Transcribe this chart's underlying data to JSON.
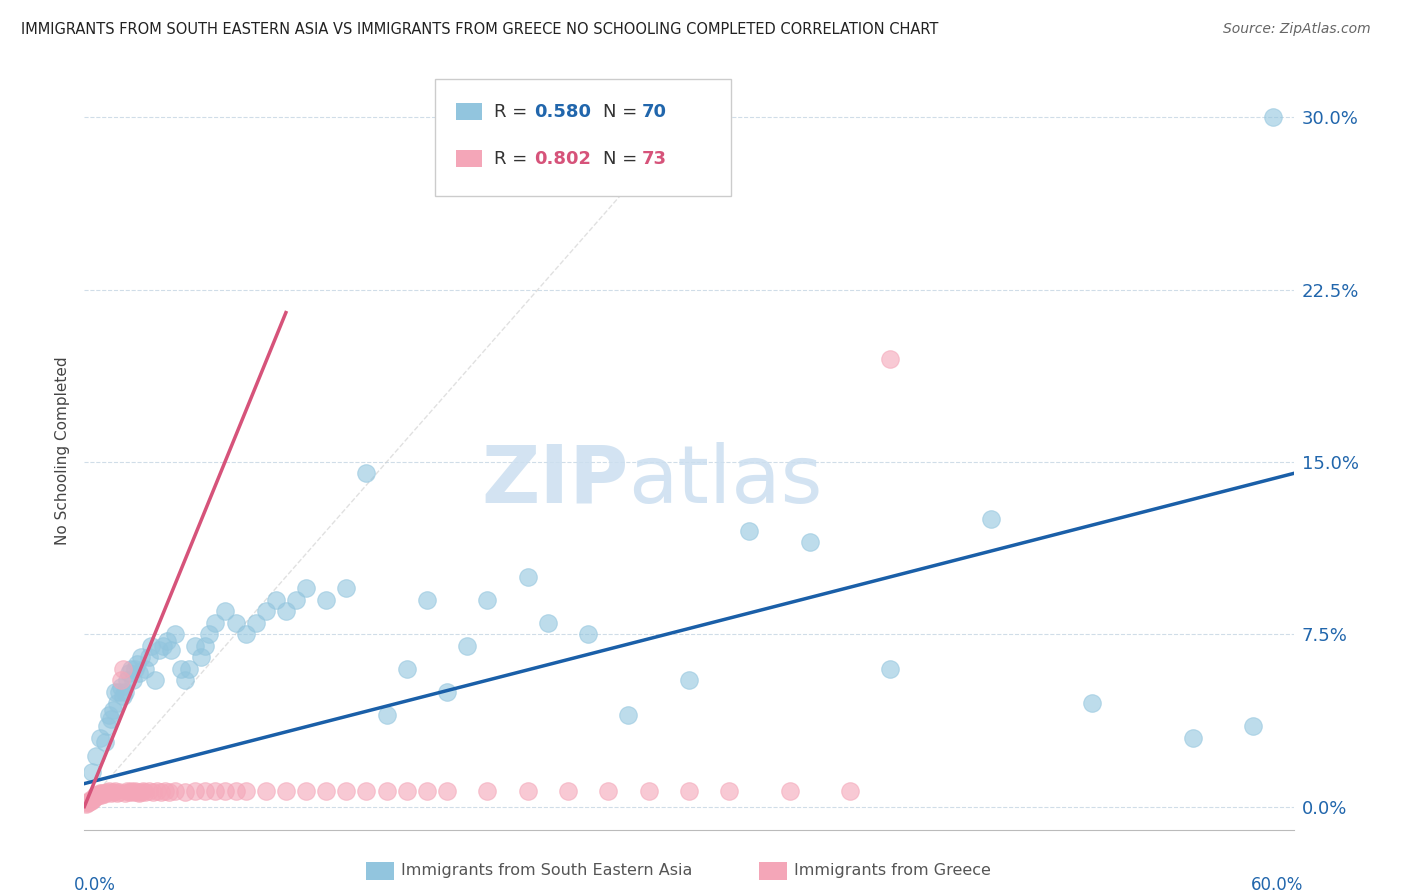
{
  "title": "IMMIGRANTS FROM SOUTH EASTERN ASIA VS IMMIGRANTS FROM GREECE NO SCHOOLING COMPLETED CORRELATION CHART",
  "source": "Source: ZipAtlas.com",
  "ylabel": "No Schooling Completed",
  "ytick_values": [
    0.0,
    7.5,
    15.0,
    22.5,
    30.0
  ],
  "xlim": [
    0.0,
    60.0
  ],
  "ylim": [
    -1.0,
    32.0
  ],
  "legend_r1": "0.580",
  "legend_n1": "70",
  "legend_r2": "0.802",
  "legend_n2": "73",
  "color_blue": "#92c5de",
  "color_pink": "#f4a6b8",
  "color_blue_dark": "#2166ac",
  "color_pink_dark": "#d6537a",
  "color_blue_line": "#1a5fa8",
  "color_pink_line": "#d6537a",
  "color_diag": "#cccccc",
  "blue_scatter_x": [
    0.4,
    0.6,
    0.8,
    1.0,
    1.1,
    1.2,
    1.3,
    1.4,
    1.5,
    1.6,
    1.7,
    1.8,
    1.9,
    2.0,
    2.1,
    2.2,
    2.3,
    2.4,
    2.5,
    2.6,
    2.7,
    2.8,
    3.0,
    3.2,
    3.3,
    3.5,
    3.7,
    3.9,
    4.1,
    4.3,
    4.5,
    4.8,
    5.0,
    5.2,
    5.5,
    5.8,
    6.0,
    6.2,
    6.5,
    7.0,
    7.5,
    8.0,
    8.5,
    9.0,
    9.5,
    10.0,
    10.5,
    11.0,
    12.0,
    13.0,
    14.0,
    15.0,
    16.0,
    17.0,
    18.0,
    19.0,
    20.0,
    22.0,
    23.0,
    25.0,
    27.0,
    30.0,
    33.0,
    36.0,
    40.0,
    45.0,
    50.0,
    55.0,
    58.0,
    59.0
  ],
  "blue_scatter_y": [
    1.5,
    2.2,
    3.0,
    2.8,
    3.5,
    4.0,
    3.8,
    4.2,
    5.0,
    4.5,
    5.0,
    5.2,
    4.8,
    5.0,
    5.5,
    5.8,
    6.0,
    5.5,
    6.0,
    6.2,
    5.8,
    6.5,
    6.0,
    6.5,
    7.0,
    5.5,
    6.8,
    7.0,
    7.2,
    6.8,
    7.5,
    6.0,
    5.5,
    6.0,
    7.0,
    6.5,
    7.0,
    7.5,
    8.0,
    8.5,
    8.0,
    7.5,
    8.0,
    8.5,
    9.0,
    8.5,
    9.0,
    9.5,
    9.0,
    9.5,
    14.5,
    4.0,
    6.0,
    9.0,
    5.0,
    7.0,
    9.0,
    10.0,
    8.0,
    7.5,
    4.0,
    5.5,
    12.0,
    11.5,
    6.0,
    12.5,
    4.5,
    3.0,
    3.5,
    30.0
  ],
  "pink_scatter_x": [
    0.1,
    0.15,
    0.2,
    0.25,
    0.3,
    0.35,
    0.4,
    0.45,
    0.5,
    0.55,
    0.6,
    0.65,
    0.7,
    0.75,
    0.8,
    0.85,
    0.9,
    0.95,
    1.0,
    1.1,
    1.2,
    1.3,
    1.4,
    1.5,
    1.6,
    1.7,
    1.8,
    1.9,
    2.0,
    2.1,
    2.2,
    2.3,
    2.4,
    2.5,
    2.6,
    2.7,
    2.8,
    2.9,
    3.0,
    3.2,
    3.4,
    3.6,
    3.8,
    4.0,
    4.2,
    4.5,
    5.0,
    5.5,
    6.0,
    6.5,
    7.0,
    7.5,
    8.0,
    9.0,
    10.0,
    11.0,
    12.0,
    13.0,
    14.0,
    15.0,
    16.0,
    17.0,
    18.0,
    20.0,
    22.0,
    24.0,
    26.0,
    28.0,
    30.0,
    32.0,
    35.0,
    38.0,
    40.0
  ],
  "pink_scatter_y": [
    0.1,
    0.15,
    0.2,
    0.2,
    0.3,
    0.25,
    0.3,
    0.35,
    0.4,
    0.4,
    0.5,
    0.45,
    0.5,
    0.55,
    0.6,
    0.5,
    0.6,
    0.55,
    0.6,
    0.65,
    0.7,
    0.6,
    0.65,
    0.7,
    0.6,
    0.65,
    5.5,
    6.0,
    0.6,
    0.7,
    0.65,
    0.7,
    0.65,
    0.7,
    0.65,
    0.6,
    0.65,
    0.7,
    0.65,
    0.7,
    0.65,
    0.7,
    0.65,
    0.7,
    0.65,
    0.7,
    0.65,
    0.7,
    0.7,
    0.7,
    0.7,
    0.7,
    0.7,
    0.7,
    0.7,
    0.7,
    0.7,
    0.7,
    0.7,
    0.7,
    0.7,
    0.7,
    0.7,
    0.7,
    0.7,
    0.7,
    0.7,
    0.7,
    0.7,
    0.7,
    0.7,
    0.7,
    19.5
  ],
  "blue_line_x": [
    0.0,
    60.0
  ],
  "blue_line_y": [
    1.0,
    14.5
  ],
  "pink_line_x": [
    0.0,
    10.0
  ],
  "pink_line_y": [
    0.0,
    21.5
  ],
  "diag_line_x": [
    0.0,
    30.5
  ],
  "diag_line_y": [
    0.0,
    30.5
  ],
  "grid_color": "#d0dde8",
  "spine_color": "#bbbbbb"
}
